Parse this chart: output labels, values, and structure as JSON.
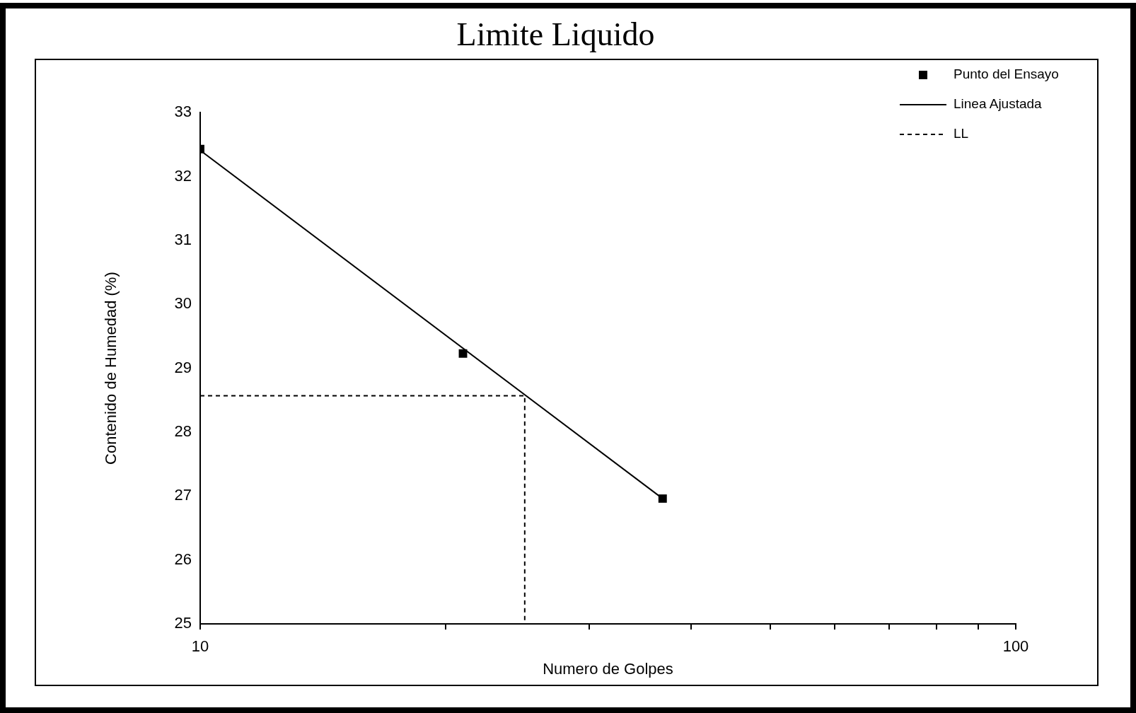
{
  "chart_data": {
    "type": "scatter",
    "title": "Limite Liquido",
    "xlabel": "Numero de Golpes",
    "ylabel": "Contenido de Humedad (%)",
    "log": "x",
    "xlim": [
      10,
      100
    ],
    "xticks": [
      10,
      {
        "value": 20,
        "label": null
      },
      {
        "value": 30,
        "label": null
      },
      {
        "value": 40,
        "label": null
      },
      {
        "value": 50,
        "label": null
      },
      {
        "value": 60,
        "label": null
      },
      {
        "value": 70,
        "label": null
      },
      {
        "value": 80,
        "label": null
      },
      {
        "value": 90,
        "label": null
      },
      100
    ],
    "ylim": [
      25,
      33
    ],
    "yticks": [
      25,
      26,
      27,
      28,
      29,
      30,
      31,
      32,
      33
    ],
    "grid": false,
    "legend": "top right",
    "series": [
      {
        "name": "Punto del Ensayo",
        "type": "scatter",
        "marker": "square",
        "color": "#000000",
        "x": [
          10,
          21,
          36.9
        ],
        "values": [
          32.43,
          29.23,
          26.96
        ]
      },
      {
        "name": "Linea Ajustada",
        "type": "line",
        "marker": "none",
        "line_style": "solid",
        "color": "#000000",
        "x": [
          10,
          36.9
        ],
        "values": [
          32.41,
          26.96
        ]
      },
      {
        "name": "LL",
        "type": "line",
        "marker": "none",
        "line_style": "dashed",
        "color": "#000000",
        "x": [
          10,
          25,
          25
        ],
        "values": [
          28.57,
          28.57,
          25
        ]
      }
    ]
  }
}
